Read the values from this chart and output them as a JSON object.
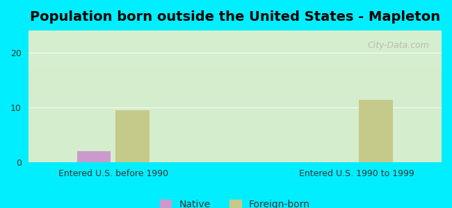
{
  "title": "Population born outside the United States - Mapleton",
  "groups": [
    "Entered U.S. before 1990",
    "Entered U.S. 1990 to 1999"
  ],
  "native_values": [
    2.0,
    0
  ],
  "foreign_values": [
    9.5,
    11.3
  ],
  "native_color": "#cc99cc",
  "foreign_color": "#c5c98a",
  "background_color": "#00eeff",
  "plot_bg_top": "#ffffff",
  "plot_bg_bottom": "#d4edcc",
  "yticks": [
    0,
    10,
    20
  ],
  "ylim": [
    0,
    24
  ],
  "bar_width": 0.28,
  "title_fontsize": 14,
  "watermark": "City-Data.com",
  "legend_labels": [
    "Native",
    "Foreign-born"
  ]
}
